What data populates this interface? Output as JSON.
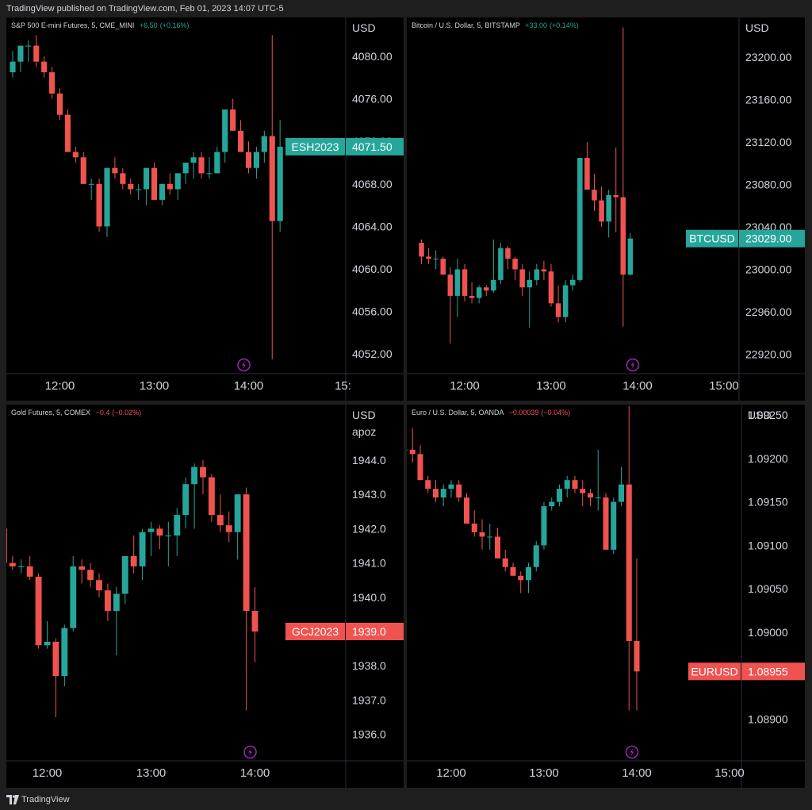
{
  "header": {
    "published": "TradingView published on TradingView.com, Feb 01, 2023 14:07 UTC-5"
  },
  "footer": {
    "brand": "TradingView"
  },
  "colors": {
    "up": "#26a69a",
    "down": "#ef5350",
    "background": "#000000",
    "grid": "#2a2e39",
    "text": "#d1d4dc",
    "event_icon": "#9c27b0"
  },
  "panels": [
    {
      "title": "S&P 500 E-mini Futures, 5, CME_MINI",
      "change": "+6.50",
      "change_pct": "(+0.16%)",
      "change_color": "#26a69a",
      "currency": "USD",
      "time_labels": [
        "12:00",
        "13:00",
        "14:00",
        "15:"
      ],
      "price_labels": [
        "4080.00",
        "4076.00",
        "4072.00",
        "4068.00",
        "4064.00",
        "4060.00",
        "4056.00",
        "4052.00"
      ],
      "last_tag": {
        "symbol": "ESH2023",
        "price": "4071.50",
        "color": "#26a69a"
      },
      "event_icon": "lightning-icon"
    },
    {
      "title": "Bitcoin / U.S. Dollar, 5, BITSTAMP",
      "change": "+33.00",
      "change_pct": "(+0.14%)",
      "change_color": "#26a69a",
      "currency": "USD",
      "time_labels": [
        "12:00",
        "13:00",
        "14:00",
        "15:00"
      ],
      "price_labels": [
        "23200.00",
        "23160.00",
        "23120.00",
        "23080.00",
        "23040.00",
        "23000.00",
        "22960.00",
        "22920.00"
      ],
      "last_tag": {
        "symbol": "BTCUSD",
        "price": "23029.00",
        "color": "#26a69a"
      },
      "event_icon": "lightning-icon"
    },
    {
      "title": "Gold Futures, 5, COMEX",
      "change": "−0.4",
      "change_pct": "(−0.02%)",
      "change_color": "#ef5350",
      "currency": "USD",
      "unit": "apoz",
      "time_labels": [
        "12:00",
        "13:00",
        "14:00"
      ],
      "price_labels": [
        "1944.0",
        "1943.0",
        "1942.0",
        "1941.0",
        "1940.0",
        "1939.0",
        "1938.0",
        "1937.0",
        "1936.0"
      ],
      "last_tag": {
        "symbol": "GCJ2023",
        "price": "1939.0",
        "color": "#ef5350"
      },
      "event_icon": "lightning-icon"
    },
    {
      "title": "Euro / U.S. Dollar, 5, OANDA",
      "change": "−0.00039",
      "change_pct": "(−0.04%)",
      "change_color": "#ef5350",
      "currency": "USD",
      "time_labels": [
        "12:00",
        "13:00",
        "14:00",
        "15:00"
      ],
      "price_labels": [
        "1.09250",
        "1.09200",
        "1.09150",
        "1.09100",
        "1.09050",
        "1.09000",
        "1.08950",
        "1.08900"
      ],
      "last_tag": {
        "symbol": "EURUSD",
        "price": "1.08955",
        "color": "#ef5350"
      },
      "event_icon": "lightning-icon"
    }
  ],
  "chart_data": [
    {
      "type": "candlestick",
      "title": "S&P 500 E-mini Futures, 5, CME_MINI",
      "interval": "5",
      "x_start": "11:30",
      "x_range": [
        "11:30",
        "15:00"
      ],
      "ylim": [
        4050.5,
        4082.8
      ],
      "ohlc": [
        [
          4078.5,
          4080.5,
          4078.0,
          4079.5
        ],
        [
          4079.5,
          4081.0,
          4078.5,
          4081.0
        ],
        [
          4081.0,
          4081.5,
          4079.5,
          4081.0
        ],
        [
          4081.0,
          4082.0,
          4079.0,
          4079.5
        ],
        [
          4079.5,
          4080.0,
          4078.0,
          4078.5
        ],
        [
          4078.5,
          4079.0,
          4076.0,
          4076.5
        ],
        [
          4076.5,
          4077.0,
          4074.0,
          4074.5
        ],
        [
          4074.5,
          4075.0,
          4071.0,
          4071.0
        ],
        [
          4071.0,
          4071.5,
          4070.0,
          4070.5
        ],
        [
          4070.5,
          4071.0,
          4068.0,
          4068.0
        ],
        [
          4068.0,
          4068.5,
          4066.5,
          4068.0
        ],
        [
          4068.0,
          4068.5,
          4063.5,
          4064.0
        ],
        [
          4064.0,
          4069.5,
          4063.0,
          4069.5
        ],
        [
          4069.5,
          4070.5,
          4068.5,
          4069.0
        ],
        [
          4069.0,
          4069.5,
          4067.5,
          4068.0
        ],
        [
          4068.0,
          4068.5,
          4067.0,
          4067.5
        ],
        [
          4067.5,
          4068.0,
          4066.5,
          4067.5
        ],
        [
          4067.5,
          4069.5,
          4066.0,
          4069.5
        ],
        [
          4069.5,
          4070.0,
          4066.5,
          4066.5
        ],
        [
          4066.5,
          4068.0,
          4066.0,
          4068.0
        ],
        [
          4068.0,
          4069.0,
          4067.0,
          4067.5
        ],
        [
          4067.5,
          4069.0,
          4066.5,
          4069.0
        ],
        [
          4069.0,
          4070.0,
          4068.0,
          4070.0
        ],
        [
          4070.0,
          4071.0,
          4068.5,
          4070.5
        ],
        [
          4070.5,
          4071.0,
          4068.5,
          4069.0
        ],
        [
          4069.0,
          4070.5,
          4068.5,
          4069.0
        ],
        [
          4069.0,
          4071.5,
          4069.0,
          4071.0
        ],
        [
          4071.0,
          4075.0,
          4070.0,
          4075.0
        ],
        [
          4075.0,
          4076.0,
          4073.0,
          4073.0
        ],
        [
          4073.0,
          4074.0,
          4071.0,
          4071.0
        ],
        [
          4071.0,
          4072.0,
          4069.0,
          4069.5
        ],
        [
          4069.5,
          4071.5,
          4068.5,
          4071.0
        ],
        [
          4071.0,
          4073.0,
          4070.0,
          4072.5
        ],
        [
          4072.5,
          4082.0,
          4051.5,
          4064.5
        ],
        [
          4064.5,
          4074.0,
          4063.5,
          4071.5
        ]
      ]
    },
    {
      "type": "candlestick",
      "title": "Bitcoin / U.S. Dollar, 5, BITSTAMP",
      "interval": "5",
      "x_start": "11:30",
      "x_range": [
        "11:30",
        "15:00"
      ],
      "ylim": [
        22900,
        23250
      ],
      "ohlc": [
        [
          23025,
          23028,
          23005,
          23012
        ],
        [
          23012,
          23020,
          23005,
          23010
        ],
        [
          23010,
          23018,
          23000,
          23010
        ],
        [
          23010,
          23012,
          22995,
          22995
        ],
        [
          22995,
          23002,
          22930,
          22975
        ],
        [
          22975,
          23010,
          22955,
          23000
        ],
        [
          23000,
          23005,
          22970,
          22975
        ],
        [
          22975,
          22988,
          22968,
          22973
        ],
        [
          22973,
          22985,
          22968,
          22983
        ],
        [
          22983,
          22985,
          22975,
          22980
        ],
        [
          22980,
          23028,
          22978,
          22990
        ],
        [
          22990,
          23025,
          22986,
          23020
        ],
        [
          23020,
          23022,
          23000,
          23010
        ],
        [
          23010,
          23012,
          22990,
          23000
        ],
        [
          23000,
          23005,
          22975,
          22983
        ],
        [
          22983,
          22998,
          22945,
          22990
        ],
        [
          22990,
          23005,
          22985,
          23000
        ],
        [
          23000,
          23008,
          22990,
          22998
        ],
        [
          22998,
          23005,
          22965,
          22968
        ],
        [
          22968,
          22985,
          22950,
          22955
        ],
        [
          22955,
          22990,
          22950,
          22985
        ],
        [
          22985,
          22995,
          22980,
          22990
        ],
        [
          22990,
          23105,
          22988,
          23105
        ],
        [
          23105,
          23120,
          23075,
          23075
        ],
        [
          23075,
          23090,
          23055,
          23065
        ],
        [
          23065,
          23078,
          23040,
          23045
        ],
        [
          23045,
          23075,
          23030,
          23070
        ],
        [
          23070,
          23115,
          23035,
          23068
        ],
        [
          23068,
          23228,
          22946,
          22995
        ],
        [
          22995,
          23034,
          22994,
          23029
        ]
      ]
    },
    {
      "type": "candlestick",
      "title": "Gold Futures, 5, COMEX",
      "interval": "5",
      "x_start": "11:30",
      "x_range": [
        "11:30",
        "14:45"
      ],
      "ylim": [
        1935.5,
        1945.1
      ],
      "ohlc": [
        [
          1943.8,
          1944.0,
          1942.0,
          1942.0
        ],
        [
          1942.0,
          1942.3,
          1940.5,
          1941.0
        ],
        [
          1941.0,
          1941.2,
          1940.8,
          1940.9
        ],
        [
          1940.9,
          1941.1,
          1940.7,
          1940.9
        ],
        [
          1940.9,
          1941.2,
          1940.5,
          1940.6
        ],
        [
          1940.6,
          1940.7,
          1938.5,
          1938.6
        ],
        [
          1938.6,
          1939.3,
          1938.5,
          1938.7
        ],
        [
          1938.7,
          1938.8,
          1936.5,
          1937.7
        ],
        [
          1937.7,
          1939.2,
          1937.4,
          1939.1
        ],
        [
          1939.1,
          1941.2,
          1939.0,
          1940.9
        ],
        [
          1940.9,
          1941.1,
          1940.4,
          1940.8
        ],
        [
          1940.8,
          1941.0,
          1940.3,
          1940.5
        ],
        [
          1940.5,
          1940.7,
          1940.0,
          1940.2
        ],
        [
          1940.2,
          1940.4,
          1939.3,
          1939.6
        ],
        [
          1939.6,
          1940.3,
          1938.3,
          1940.1
        ],
        [
          1940.1,
          1941.2,
          1939.8,
          1941.2
        ],
        [
          1941.2,
          1941.8,
          1940.7,
          1940.9
        ],
        [
          1940.9,
          1942.0,
          1940.5,
          1941.9
        ],
        [
          1941.9,
          1942.2,
          1941.2,
          1942.0
        ],
        [
          1942.0,
          1942.1,
          1941.4,
          1941.8
        ],
        [
          1941.8,
          1942.2,
          1940.9,
          1941.8
        ],
        [
          1941.8,
          1942.6,
          1941.2,
          1942.4
        ],
        [
          1942.4,
          1943.5,
          1942.0,
          1943.3
        ],
        [
          1943.3,
          1943.9,
          1942.0,
          1943.8
        ],
        [
          1943.8,
          1944.0,
          1943.0,
          1943.5
        ],
        [
          1943.5,
          1943.6,
          1942.2,
          1942.4
        ],
        [
          1942.4,
          1943.0,
          1941.9,
          1942.1
        ],
        [
          1942.1,
          1942.5,
          1941.6,
          1941.9
        ],
        [
          1941.9,
          1943.0,
          1941.1,
          1943.0
        ],
        [
          1943.0,
          1943.2,
          1936.7,
          1939.6
        ],
        [
          1939.6,
          1940.3,
          1938.1,
          1939.0
        ]
      ]
    },
    {
      "type": "candlestick",
      "title": "Euro / U.S. Dollar, 5, OANDA",
      "interval": "5",
      "x_start": "11:30",
      "x_range": [
        "11:30",
        "15:00"
      ],
      "ylim": [
        1.08875,
        1.09275
      ],
      "ohlc": [
        [
          1.0921,
          1.0922,
          1.092,
          1.0921
        ],
        [
          1.0921,
          1.09235,
          1.09195,
          1.09205
        ],
        [
          1.09205,
          1.09215,
          1.09175,
          1.09175
        ],
        [
          1.09175,
          1.0918,
          1.0916,
          1.09165
        ],
        [
          1.09165,
          1.09175,
          1.0915,
          1.09155
        ],
        [
          1.09155,
          1.0917,
          1.09145,
          1.09165
        ],
        [
          1.09165,
          1.09175,
          1.09155,
          1.0917
        ],
        [
          1.0917,
          1.09175,
          1.0915,
          1.09155
        ],
        [
          1.09155,
          1.0916,
          1.09125,
          1.09125
        ],
        [
          1.09125,
          1.0914,
          1.0911,
          1.09115
        ],
        [
          1.09115,
          1.0913,
          1.09095,
          1.0911
        ],
        [
          1.0911,
          1.09125,
          1.09095,
          1.0911
        ],
        [
          1.0911,
          1.0912,
          1.09085,
          1.09085
        ],
        [
          1.09085,
          1.09095,
          1.0907,
          1.09075
        ],
        [
          1.09075,
          1.0908,
          1.09065,
          1.09065
        ],
        [
          1.09065,
          1.0907,
          1.09045,
          1.0906
        ],
        [
          1.0906,
          1.0908,
          1.09045,
          1.09075
        ],
        [
          1.09075,
          1.09105,
          1.0907,
          1.091
        ],
        [
          1.091,
          1.0915,
          1.09095,
          1.09145
        ],
        [
          1.09145,
          1.09155,
          1.0914,
          1.0915
        ],
        [
          1.0915,
          1.0917,
          1.09145,
          1.09165
        ],
        [
          1.09165,
          1.0918,
          1.09155,
          1.09175
        ],
        [
          1.09175,
          1.0918,
          1.0916,
          1.09165
        ],
        [
          1.09165,
          1.09175,
          1.09145,
          1.0916
        ],
        [
          1.0916,
          1.09165,
          1.09145,
          1.09155
        ],
        [
          1.09155,
          1.0921,
          1.0914,
          1.09155
        ],
        [
          1.09155,
          1.0916,
          1.09095,
          1.09095
        ],
        [
          1.09095,
          1.09155,
          1.0909,
          1.0915
        ],
        [
          1.0915,
          1.0919,
          1.09145,
          1.0917
        ],
        [
          1.0917,
          1.0926,
          1.0891,
          1.0899
        ],
        [
          1.0899,
          1.09085,
          1.0891,
          1.08955
        ]
      ]
    }
  ]
}
